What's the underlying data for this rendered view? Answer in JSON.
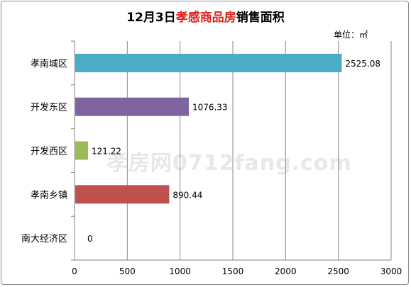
{
  "chart_data": {
    "type": "bar",
    "orientation": "horizontal",
    "title": {
      "part1": "12月3日",
      "part2": "孝感商品房",
      "part3": "销售面积"
    },
    "unit_label": "单位：㎡",
    "categories": [
      "孝南城区",
      "开发东区",
      "开发西区",
      "孝南乡镇",
      "南大经济区"
    ],
    "values": [
      2525.08,
      1076.33,
      121.22,
      890.44,
      0
    ],
    "value_labels": [
      "2525.08",
      "1076.33",
      "121.22",
      "890.44",
      "0"
    ],
    "colors": [
      "#4bacc6",
      "#8064a2",
      "#9bbb59",
      "#c0504d",
      "#4f81bd"
    ],
    "xlim": [
      0,
      3000
    ],
    "xticks": [
      0,
      500,
      1000,
      1500,
      2000,
      2500,
      3000
    ],
    "grid": true
  },
  "watermark": "孝房网0712fang.com"
}
